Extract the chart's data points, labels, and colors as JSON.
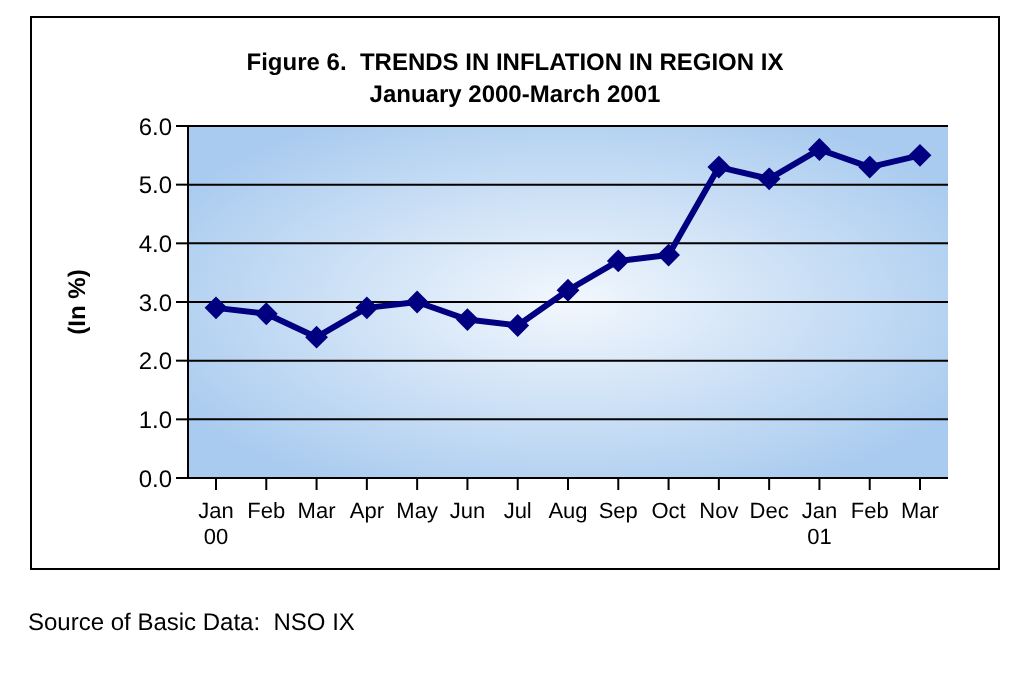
{
  "chart_data": {
    "type": "line",
    "title": "Figure 6.  TRENDS IN INFLATION IN REGION IX",
    "subtitle": "January 2000-March 2001",
    "ylabel": "(In %)",
    "categories": [
      "Jan\n00",
      "Feb",
      "Mar",
      "Apr",
      "May",
      "Jun",
      "Jul",
      "Aug",
      "Sep",
      "Oct",
      "Nov",
      "Dec",
      "Jan\n01",
      "Feb",
      "Mar"
    ],
    "series": [
      {
        "color": "#000080",
        "values": [
          2.9,
          2.8,
          2.4,
          2.9,
          3.0,
          2.7,
          2.6,
          3.2,
          3.7,
          3.8,
          5.3,
          5.1,
          5.6,
          5.3,
          5.5
        ]
      }
    ],
    "ylim": [
      0,
      6
    ],
    "yticks": [
      {
        "value": 0,
        "label": "0.0"
      },
      {
        "value": 1,
        "label": "1.0"
      },
      {
        "value": 2,
        "label": "2.0"
      },
      {
        "value": 3,
        "label": "3.0"
      },
      {
        "value": 4,
        "label": "4.0"
      },
      {
        "value": 5,
        "label": "5.0"
      },
      {
        "value": 6,
        "label": "6.0"
      }
    ],
    "grid": "y",
    "marker": "diamond",
    "line_style": "solid",
    "annotations": [
      "Source of Basic Data:  NSO IX"
    ]
  }
}
